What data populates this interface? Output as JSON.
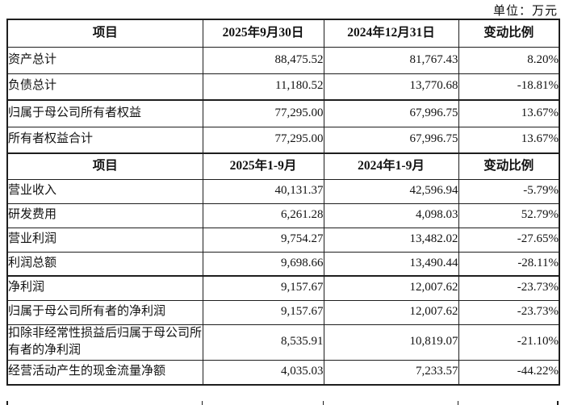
{
  "unit_note": "单位：万元",
  "table": {
    "sections": [
      {
        "header": [
          "项目",
          "2025年9月30日",
          "2024年12月31日",
          "变动比例"
        ],
        "rows": [
          {
            "label": "资产总计",
            "values": [
              "88,475.52",
              "81,767.43",
              "8.20%"
            ]
          },
          {
            "label": "负债总计",
            "values": [
              "11,180.52",
              "13,770.68",
              "-18.81%"
            ]
          },
          {
            "label": "归属于母公司所有者权益",
            "values": [
              "77,295.00",
              "67,996.75",
              "13.67%"
            ]
          },
          {
            "label": "所有者权益合计",
            "values": [
              "77,295.00",
              "67,996.75",
              "13.67%"
            ]
          }
        ]
      },
      {
        "header": [
          "项目",
          "2025年1-9月",
          "2024年1-9月",
          "变动比例"
        ],
        "rows": [
          {
            "label": "营业收入",
            "values": [
              "40,131.37",
              "42,596.94",
              "-5.79%"
            ]
          },
          {
            "label": "研发费用",
            "values": [
              "6,261.28",
              "4,098.03",
              "52.79%"
            ]
          },
          {
            "label": "营业利润",
            "values": [
              "9,754.27",
              "13,482.02",
              "-27.65%"
            ]
          },
          {
            "label": "利润总额",
            "values": [
              "9,698.66",
              "13,490.44",
              "-28.11%"
            ]
          },
          {
            "label": "净利润",
            "values": [
              "9,157.67",
              "12,007.62",
              "-23.73%"
            ]
          },
          {
            "label": "归属于母公司所有者的净利润",
            "values": [
              "9,157.67",
              "12,007.62",
              "-23.73%"
            ]
          },
          {
            "label": "扣除非经常性损益后归属于母公司所有者的净利润",
            "values": [
              "8,535.91",
              "10,819.07",
              "-21.10%"
            ]
          },
          {
            "label": "经营活动产生的现金流量净额",
            "values": [
              "4,035.03",
              "7,233.57",
              "-44.22%"
            ]
          }
        ]
      }
    ]
  }
}
